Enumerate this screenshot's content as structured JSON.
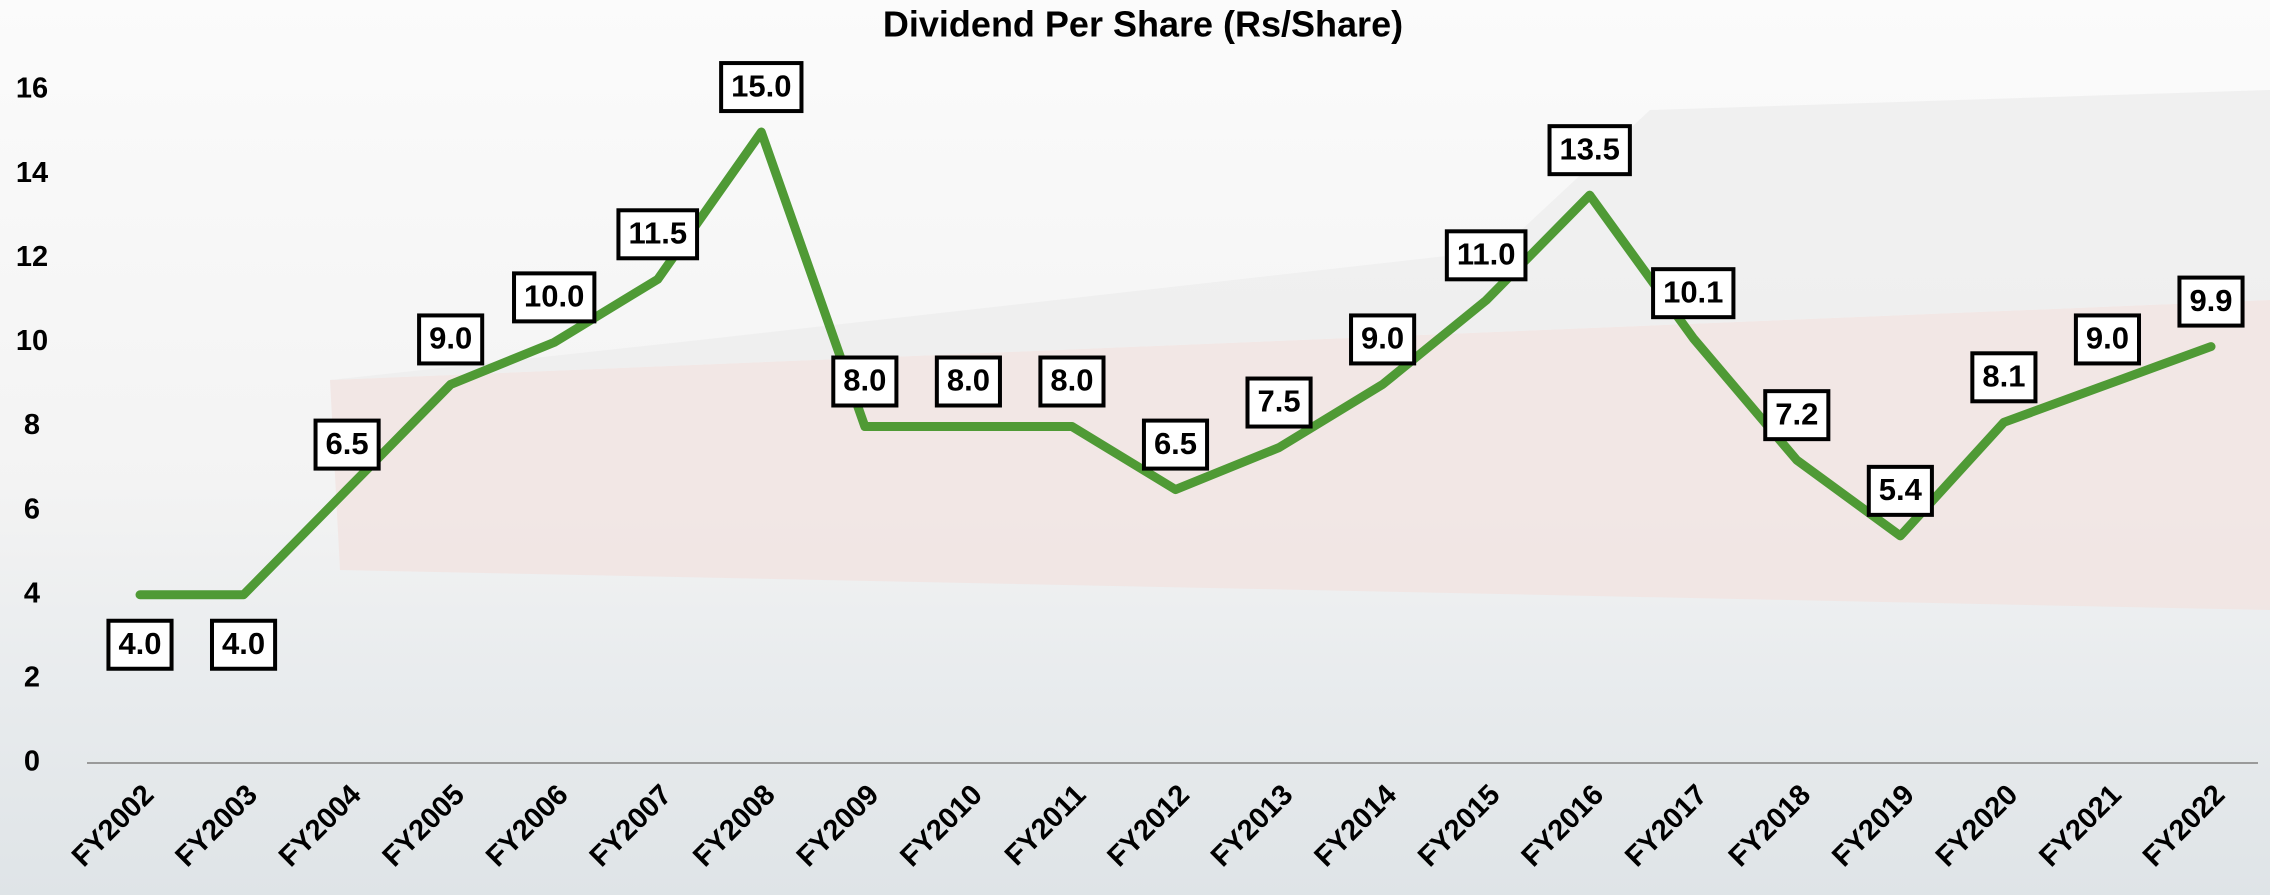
{
  "chart_data": {
    "type": "line",
    "title": "Dividend Per Share (Rs/Share)",
    "categories": [
      "FY2002",
      "FY2003",
      "FY2004",
      "FY2005",
      "FY2006",
      "FY2007",
      "FY2008",
      "FY2009",
      "FY2010",
      "FY2011",
      "FY2012",
      "FY2013",
      "FY2014",
      "FY2015",
      "FY2016",
      "FY2017",
      "FY2018",
      "FY2019",
      "FY2020",
      "FY2021",
      "FY2022"
    ],
    "values": [
      4.0,
      4.0,
      6.5,
      9.0,
      10.0,
      11.5,
      15.0,
      8.0,
      8.0,
      8.0,
      6.5,
      7.5,
      9.0,
      11.0,
      13.5,
      10.1,
      7.2,
      5.4,
      8.1,
      9.0,
      9.9
    ],
    "value_labels": [
      "4.0",
      "4.0",
      "6.5",
      "9.0",
      "10.0",
      "11.5",
      "15.0",
      "8.0",
      "8.0",
      "8.0",
      "6.5",
      "7.5",
      "9.0",
      "11.0",
      "13.5",
      "10.1",
      "7.2",
      "5.4",
      "8.1",
      "9.0",
      "9.9"
    ],
    "color": "#4f9a35",
    "ylim": [
      0,
      16
    ],
    "yticks": [
      0,
      2,
      4,
      6,
      8,
      10,
      12,
      14,
      16
    ]
  }
}
